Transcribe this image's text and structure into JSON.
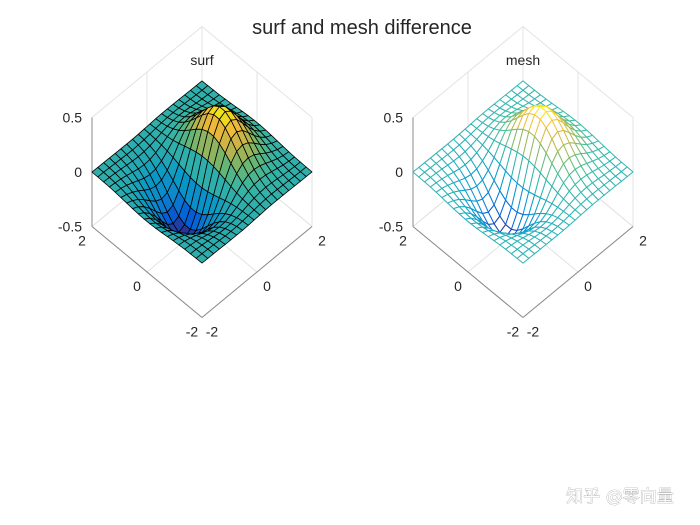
{
  "figure": {
    "suptitle": "surf and mesh difference",
    "watermark": "知乎 @零向量"
  },
  "chart_data": [
    {
      "type": "surface",
      "plot_style": "surf",
      "title": "surf",
      "function": "z = x * exp(-x^2 - y^2)",
      "xlim": [
        -2,
        2
      ],
      "ylim": [
        -2,
        2
      ],
      "zlim": [
        -0.5,
        0.5
      ],
      "grid_points": 20,
      "colormap": "parula",
      "edge_color": "#000000",
      "x_ticks": [
        "-2",
        "0",
        "2"
      ],
      "y_ticks": [
        "-2",
        "0",
        "2"
      ],
      "z_ticks": [
        "-0.5",
        "0",
        "0.5"
      ],
      "z_max": 0.429,
      "z_min": -0.429
    },
    {
      "type": "mesh",
      "plot_style": "mesh",
      "title": "mesh",
      "function": "z = x * exp(-x^2 - y^2)",
      "xlim": [
        -2,
        2
      ],
      "ylim": [
        -2,
        2
      ],
      "zlim": [
        -0.5,
        0.5
      ],
      "grid_points": 20,
      "colormap": "parula",
      "face_color": "#ffffff",
      "x_ticks": [
        "-2",
        "0",
        "2"
      ],
      "y_ticks": [
        "-2",
        "0",
        "2"
      ],
      "z_ticks": [
        "-0.5",
        "0",
        "0.5"
      ],
      "z_max": 0.429,
      "z_min": -0.429
    }
  ]
}
